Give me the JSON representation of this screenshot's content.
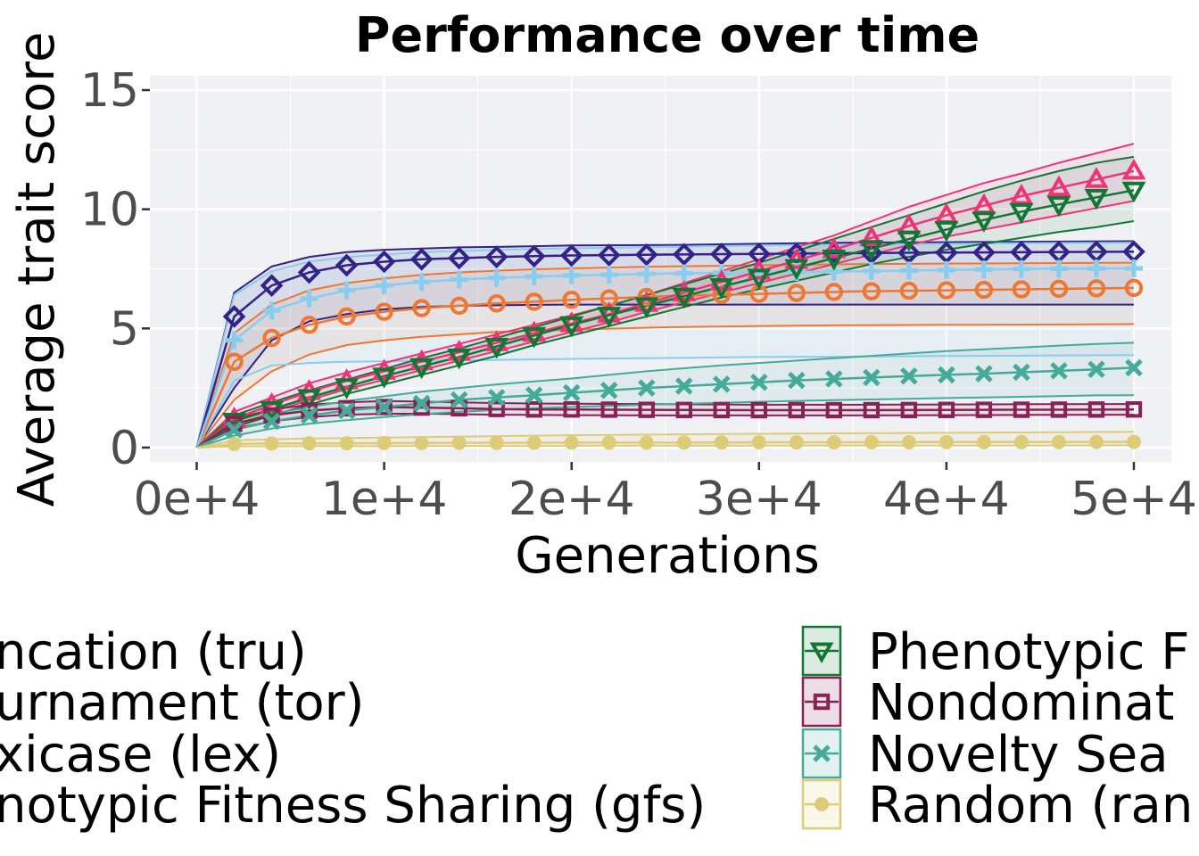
{
  "chart_data": {
    "type": "line",
    "title": "Performance over time",
    "xlabel": "Generations",
    "ylabel": "Average trait score",
    "xlim": [
      -2500,
      52000
    ],
    "ylim": [
      -0.6,
      15.6
    ],
    "x_ticks": [
      0,
      10000,
      20000,
      30000,
      40000,
      50000
    ],
    "x_tick_labels": [
      "0e+4",
      "1e+4",
      "2e+4",
      "3e+4",
      "4e+4",
      "5e+4"
    ],
    "y_ticks": [
      0,
      5,
      10,
      15
    ],
    "y_tick_labels": [
      "0",
      "5",
      "10",
      "15"
    ],
    "grid": true,
    "legend_position": "bottom",
    "series": [
      {
        "name": "Truncation (tru)",
        "color": "#332288",
        "marker": "diamond",
        "x": [
          0,
          2000,
          4000,
          6000,
          8000,
          10000,
          12000,
          14000,
          16000,
          18000,
          20000,
          25000,
          30000,
          35000,
          40000,
          45000,
          50000
        ],
        "y": [
          0,
          5.5,
          6.8,
          7.35,
          7.65,
          7.8,
          7.9,
          7.95,
          8.0,
          8.03,
          8.06,
          8.1,
          8.13,
          8.16,
          8.18,
          8.2,
          8.22
        ],
        "lo": [
          0,
          2.5,
          4.5,
          5.3,
          5.6,
          5.8,
          5.9,
          5.95,
          5.97,
          5.99,
          6.0,
          6.0,
          6.0,
          6.0,
          6.0,
          6.0,
          6.0
        ],
        "hi": [
          0,
          6.5,
          7.6,
          8.0,
          8.2,
          8.3,
          8.35,
          8.4,
          8.42,
          8.45,
          8.48,
          8.5,
          8.55,
          8.6,
          8.62,
          8.64,
          8.66
        ]
      },
      {
        "name": "Tournament (tor)",
        "color": "#EE7733",
        "marker": "circle",
        "x": [
          0,
          2000,
          4000,
          6000,
          8000,
          10000,
          12000,
          14000,
          16000,
          18000,
          20000,
          25000,
          30000,
          35000,
          40000,
          45000,
          50000
        ],
        "y": [
          0,
          3.6,
          4.6,
          5.15,
          5.5,
          5.7,
          5.85,
          5.95,
          6.05,
          6.12,
          6.2,
          6.35,
          6.45,
          6.55,
          6.6,
          6.65,
          6.7
        ],
        "lo": [
          0,
          2.0,
          3.2,
          3.9,
          4.3,
          4.5,
          4.65,
          4.75,
          4.85,
          4.9,
          4.95,
          5.05,
          5.1,
          5.13,
          5.15,
          5.16,
          5.18
        ],
        "hi": [
          0,
          4.8,
          6.0,
          6.6,
          6.9,
          7.1,
          7.25,
          7.35,
          7.42,
          7.48,
          7.52,
          7.6,
          7.65,
          7.7,
          7.72,
          7.74,
          7.76
        ]
      },
      {
        "name": "Lexicase (lex)",
        "color": "#88CCEE",
        "marker": "plus",
        "x": [
          0,
          2000,
          4000,
          6000,
          8000,
          10000,
          12000,
          14000,
          16000,
          18000,
          20000,
          25000,
          30000,
          35000,
          40000,
          45000,
          50000
        ],
        "y": [
          0,
          4.5,
          5.75,
          6.25,
          6.6,
          6.8,
          6.95,
          7.05,
          7.12,
          7.18,
          7.22,
          7.3,
          7.35,
          7.4,
          7.45,
          7.5,
          7.52
        ],
        "lo": [
          0,
          2.8,
          3.45,
          3.55,
          3.6,
          3.62,
          3.64,
          3.66,
          3.68,
          3.7,
          3.72,
          3.76,
          3.8,
          3.82,
          3.84,
          3.86,
          3.88
        ],
        "hi": [
          0,
          6.4,
          7.4,
          7.8,
          8.0,
          8.1,
          8.2,
          8.25,
          8.3,
          8.33,
          8.36,
          8.42,
          8.48,
          8.52,
          8.55,
          8.58,
          8.6
        ]
      },
      {
        "name": "Genotypic Fitness Sharing (gfs)",
        "color": "#EE3377",
        "marker": "triangle-up",
        "x": [
          0,
          2000,
          4000,
          6000,
          8000,
          10000,
          12000,
          14000,
          16000,
          18000,
          20000,
          22000,
          24000,
          26000,
          28000,
          30000,
          32000,
          34000,
          36000,
          38000,
          40000,
          42000,
          44000,
          46000,
          48000,
          50000
        ],
        "y": [
          0,
          1.2,
          1.8,
          2.35,
          2.8,
          3.2,
          3.6,
          4.0,
          4.4,
          4.8,
          5.2,
          5.6,
          6.05,
          6.5,
          6.95,
          7.4,
          7.85,
          8.3,
          8.8,
          9.3,
          9.75,
          10.15,
          10.55,
          10.9,
          11.25,
          11.6
        ],
        "lo": [
          0,
          0.9,
          1.5,
          2.0,
          2.45,
          2.85,
          3.25,
          3.65,
          4.05,
          4.45,
          4.85,
          5.25,
          5.7,
          6.1,
          6.5,
          6.9,
          7.3,
          7.7,
          8.1,
          8.5,
          8.85,
          9.15,
          9.45,
          9.75,
          10.05,
          10.35
        ],
        "hi": [
          0,
          1.5,
          2.1,
          2.7,
          3.15,
          3.55,
          3.95,
          4.35,
          4.75,
          5.15,
          5.55,
          5.95,
          6.4,
          6.9,
          7.4,
          7.9,
          8.4,
          8.9,
          9.5,
          10.1,
          10.6,
          11.1,
          11.5,
          11.95,
          12.35,
          12.75
        ]
      },
      {
        "name": "Phenotypic Fitness Sharing (pfs)",
        "color": "#117733",
        "marker": "triangle-down",
        "x": [
          0,
          2000,
          4000,
          6000,
          8000,
          10000,
          12000,
          14000,
          16000,
          18000,
          20000,
          22000,
          24000,
          26000,
          28000,
          30000,
          32000,
          34000,
          36000,
          38000,
          40000,
          42000,
          44000,
          46000,
          48000,
          50000
        ],
        "y": [
          0,
          1.1,
          1.6,
          2.1,
          2.55,
          3.0,
          3.4,
          3.8,
          4.25,
          4.7,
          5.15,
          5.55,
          5.95,
          6.35,
          6.75,
          7.15,
          7.55,
          7.95,
          8.35,
          8.75,
          9.15,
          9.55,
          9.9,
          10.2,
          10.5,
          10.8
        ],
        "lo": [
          0,
          0.85,
          1.35,
          1.8,
          2.25,
          2.65,
          3.05,
          3.45,
          3.85,
          4.3,
          4.7,
          5.1,
          5.5,
          5.9,
          6.3,
          6.65,
          7.0,
          7.35,
          7.7,
          8.0,
          8.3,
          8.55,
          8.8,
          9.05,
          9.25,
          9.5
        ],
        "hi": [
          0,
          1.35,
          1.9,
          2.4,
          2.85,
          3.3,
          3.75,
          4.15,
          4.6,
          5.05,
          5.5,
          5.95,
          6.4,
          6.85,
          7.3,
          7.75,
          8.25,
          8.75,
          9.25,
          9.75,
          10.25,
          10.75,
          11.2,
          11.6,
          11.95,
          12.2
        ]
      },
      {
        "name": "Nondominated Sorting (nds)",
        "color": "#882255",
        "marker": "square",
        "x": [
          0,
          2000,
          4000,
          6000,
          8000,
          10000,
          12000,
          14000,
          16000,
          18000,
          20000,
          25000,
          30000,
          35000,
          40000,
          45000,
          50000
        ],
        "y": [
          0,
          1.0,
          1.35,
          1.55,
          1.65,
          1.7,
          1.68,
          1.65,
          1.62,
          1.6,
          1.6,
          1.58,
          1.57,
          1.57,
          1.58,
          1.59,
          1.6
        ],
        "lo": [
          0,
          0.8,
          1.1,
          1.28,
          1.38,
          1.42,
          1.42,
          1.4,
          1.38,
          1.37,
          1.36,
          1.35,
          1.35,
          1.35,
          1.36,
          1.37,
          1.38
        ],
        "hi": [
          0,
          1.2,
          1.6,
          1.8,
          1.9,
          1.95,
          1.93,
          1.9,
          1.87,
          1.85,
          1.84,
          1.82,
          1.8,
          1.8,
          1.81,
          1.82,
          1.83
        ]
      },
      {
        "name": "Novelty Search (nov)",
        "color": "#44AA99",
        "marker": "cross",
        "x": [
          0,
          2000,
          4000,
          6000,
          8000,
          10000,
          12000,
          14000,
          16000,
          18000,
          20000,
          22000,
          24000,
          26000,
          28000,
          30000,
          32000,
          34000,
          36000,
          38000,
          40000,
          42000,
          44000,
          46000,
          48000,
          50000
        ],
        "y": [
          0,
          0.75,
          1.1,
          1.35,
          1.55,
          1.7,
          1.85,
          2.0,
          2.1,
          2.2,
          2.3,
          2.4,
          2.5,
          2.58,
          2.66,
          2.74,
          2.82,
          2.88,
          2.94,
          3.0,
          3.05,
          3.1,
          3.16,
          3.22,
          3.28,
          3.35
        ],
        "lo": [
          0,
          0.5,
          0.8,
          1.0,
          1.15,
          1.28,
          1.4,
          1.5,
          1.58,
          1.65,
          1.7,
          1.75,
          1.8,
          1.84,
          1.88,
          1.92,
          1.96,
          1.99,
          2.02,
          2.05,
          2.08,
          2.1,
          2.13,
          2.16,
          2.19,
          2.2
        ],
        "hi": [
          0,
          1.0,
          1.4,
          1.7,
          1.95,
          2.15,
          2.35,
          2.5,
          2.65,
          2.78,
          2.9,
          3.05,
          3.2,
          3.33,
          3.45,
          3.55,
          3.65,
          3.75,
          3.85,
          3.95,
          4.05,
          4.12,
          4.2,
          4.28,
          4.35,
          4.4
        ]
      },
      {
        "name": "Random (ran)",
        "color": "#DDCC77",
        "marker": "dot",
        "x": [
          0,
          2000,
          4000,
          6000,
          8000,
          10000,
          12000,
          14000,
          16000,
          18000,
          20000,
          25000,
          30000,
          35000,
          40000,
          45000,
          50000
        ],
        "y": [
          0,
          0.15,
          0.17,
          0.18,
          0.18,
          0.19,
          0.19,
          0.2,
          0.2,
          0.2,
          0.21,
          0.21,
          0.22,
          0.22,
          0.23,
          0.23,
          0.24
        ],
        "lo": [
          0,
          0.05,
          0.05,
          0.06,
          0.06,
          0.06,
          0.07,
          0.07,
          0.07,
          0.07,
          0.08,
          0.08,
          0.08,
          0.09,
          0.09,
          0.09,
          0.1
        ],
        "hi": [
          0,
          0.3,
          0.35,
          0.38,
          0.4,
          0.42,
          0.44,
          0.46,
          0.48,
          0.5,
          0.52,
          0.55,
          0.58,
          0.6,
          0.62,
          0.64,
          0.66
        ]
      }
    ]
  },
  "legend": {
    "col1": [
      "ncation (tru)",
      "urnament (tor)",
      "xicase (lex)",
      "notypic Fitness Sharing (gfs)"
    ],
    "col2": [
      "Phenotypic F",
      "Nondominat",
      "Novelty Sea",
      "Random (ran"
    ]
  }
}
